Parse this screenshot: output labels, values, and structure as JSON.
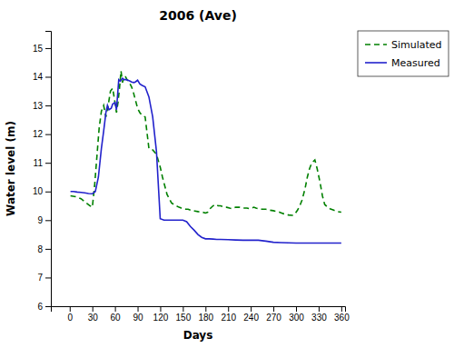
{
  "chart_data": {
    "type": "line",
    "title": "2006 (Ave)",
    "xlabel": "Days",
    "ylabel": "Water level (m)",
    "xlim": [
      -25,
      365
    ],
    "ylim": [
      6,
      15.6
    ],
    "xticks": [
      0,
      30,
      60,
      90,
      120,
      150,
      180,
      210,
      240,
      270,
      300,
      330,
      360
    ],
    "yticks": [
      6,
      7,
      8,
      9,
      10,
      11,
      12,
      13,
      14,
      15
    ],
    "grid": false,
    "legend": "right",
    "series": [
      {
        "name": "Simulated",
        "color": "#008000",
        "line_style": "dashed",
        "x": [
          1,
          8,
          15,
          22,
          27,
          30,
          33,
          36,
          39,
          42,
          45,
          48,
          51,
          54,
          57,
          60,
          62,
          64,
          66,
          68,
          70,
          72,
          74,
          76,
          78,
          80,
          82,
          84,
          86,
          88,
          90,
          93,
          96,
          100,
          105,
          110,
          115,
          120,
          123,
          126,
          129,
          132,
          135,
          138,
          141,
          145,
          148,
          151,
          154,
          157,
          160,
          163,
          166,
          170,
          173,
          176,
          180,
          183,
          186,
          190,
          193,
          197,
          200,
          205,
          208,
          212,
          215,
          220,
          225,
          230,
          235,
          238,
          241,
          244,
          247,
          250,
          255,
          260,
          265,
          270,
          275,
          278,
          281,
          284,
          287,
          290,
          295,
          298,
          302,
          305,
          308,
          312,
          315,
          318,
          321,
          325,
          328,
          332,
          335,
          338,
          342,
          345,
          350,
          355,
          360
        ],
        "values": [
          9.85,
          9.82,
          9.75,
          9.6,
          9.5,
          9.45,
          10.2,
          11.2,
          12.2,
          12.8,
          13.0,
          12.6,
          13.0,
          13.5,
          13.6,
          13.1,
          12.75,
          13.1,
          13.6,
          14.2,
          13.8,
          14.0,
          14.0,
          13.9,
          13.85,
          13.75,
          13.65,
          13.5,
          13.3,
          13.1,
          12.9,
          12.75,
          12.65,
          12.6,
          11.5,
          11.45,
          11.3,
          10.85,
          10.5,
          10.2,
          9.9,
          9.75,
          9.6,
          9.55,
          9.5,
          9.45,
          9.42,
          9.4,
          9.38,
          9.38,
          9.35,
          9.33,
          9.32,
          9.3,
          9.28,
          9.28,
          9.25,
          9.28,
          9.4,
          9.5,
          9.55,
          9.5,
          9.5,
          9.45,
          9.45,
          9.42,
          9.4,
          9.45,
          9.45,
          9.42,
          9.42,
          9.4,
          9.42,
          9.45,
          9.42,
          9.4,
          9.38,
          9.38,
          9.35,
          9.33,
          9.3,
          9.28,
          9.25,
          9.22,
          9.2,
          9.18,
          9.17,
          9.2,
          9.35,
          9.5,
          9.7,
          10.1,
          10.5,
          10.8,
          11.0,
          11.1,
          10.8,
          10.3,
          9.85,
          9.55,
          9.45,
          9.4,
          9.35,
          9.3,
          9.28
        ]
      },
      {
        "name": "Measured",
        "color": "#2222CC",
        "line_style": "solid",
        "x": [
          1,
          5,
          10,
          15,
          20,
          25,
          30,
          34,
          38,
          42,
          45,
          48,
          50,
          52,
          55,
          57,
          60,
          62,
          65,
          67,
          70,
          72,
          75,
          77,
          80,
          82,
          85,
          87,
          90,
          93,
          96,
          100,
          105,
          110,
          115,
          120,
          125,
          130,
          135,
          140,
          145,
          150,
          155,
          160,
          165,
          170,
          175,
          180,
          185,
          190,
          195,
          200,
          210,
          220,
          230,
          240,
          250,
          260,
          270,
          280,
          290,
          300,
          310,
          320,
          330,
          340,
          350,
          360
        ],
        "values": [
          10.0,
          10.0,
          9.98,
          9.97,
          9.95,
          9.93,
          9.92,
          10.0,
          10.5,
          11.5,
          12.1,
          12.75,
          13.0,
          12.85,
          12.9,
          13.05,
          13.1,
          12.85,
          13.9,
          13.85,
          13.95,
          13.9,
          13.9,
          13.88,
          13.85,
          13.82,
          13.8,
          13.82,
          13.88,
          13.75,
          13.7,
          13.65,
          13.3,
          12.6,
          11.4,
          9.05,
          9.0,
          9.0,
          9.0,
          9.0,
          9.0,
          9.0,
          8.95,
          8.78,
          8.65,
          8.5,
          8.4,
          8.35,
          8.35,
          8.34,
          8.33,
          8.33,
          8.32,
          8.31,
          8.3,
          8.3,
          8.3,
          8.27,
          8.23,
          8.22,
          8.21,
          8.2,
          8.2,
          8.2,
          8.2,
          8.2,
          8.2,
          8.2
        ]
      }
    ]
  }
}
